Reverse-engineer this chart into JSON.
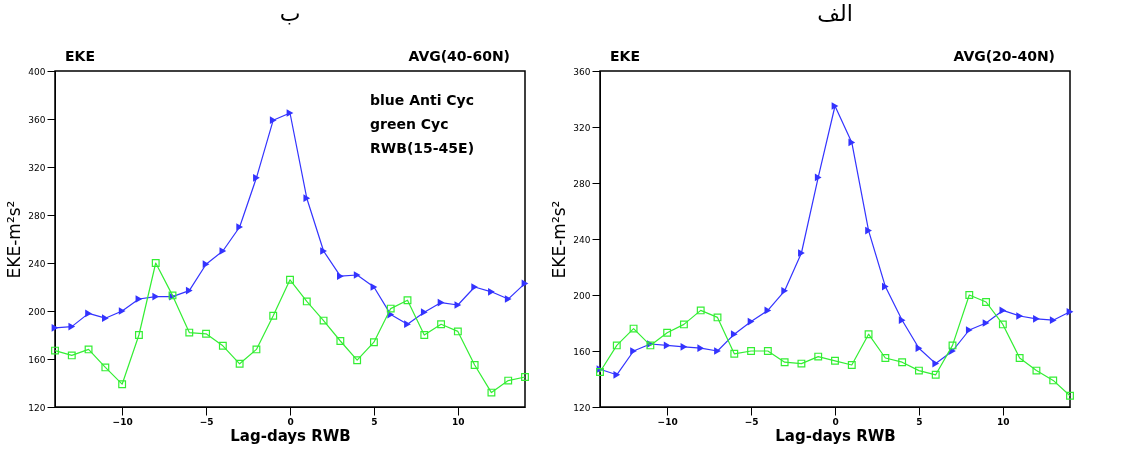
{
  "chart_data": [
    {
      "type": "line",
      "title": "ب",
      "xlabel": "Lag-days RWB",
      "ylabel": "EKE-m²s²",
      "annotations": [
        "EKE",
        "AVG(40-60N)",
        "blue  Anti Cyc",
        "green Cyc",
        "RWB(15-45E)"
      ],
      "x": [
        -14,
        -13,
        -12,
        -11,
        -10,
        -9,
        -8,
        -7,
        -6,
        -5,
        -4,
        -3,
        -2,
        -1,
        0,
        1,
        2,
        3,
        4,
        5,
        6,
        7,
        8,
        9,
        10,
        11,
        12,
        13,
        14
      ],
      "series": [
        {
          "color": "#3333ff",
          "marker": "triangle",
          "values": [
            186,
            187,
            198,
            194,
            200,
            210,
            212,
            212,
            217,
            239,
            250,
            270,
            311,
            359,
            365,
            294,
            250,
            229,
            230,
            220,
            197,
            189,
            199,
            207,
            205,
            220,
            216,
            210,
            223
          ]
        },
        {
          "color": "#33ee33",
          "marker": "square",
          "values": [
            167,
            163,
            168,
            153,
            139,
            180,
            240,
            213,
            182,
            181,
            171,
            156,
            168,
            196,
            226,
            208,
            192,
            175,
            159,
            174,
            202,
            209,
            180,
            189,
            183,
            155,
            132,
            142,
            145
          ]
        }
      ],
      "xlim": [
        -14,
        14
      ],
      "xticks": [
        -10,
        -5,
        0,
        5,
        10
      ],
      "ylim": [
        120,
        400
      ],
      "yticks": [
        120,
        160,
        200,
        240,
        280,
        320,
        360,
        400
      ],
      "grid": false
    },
    {
      "type": "line",
      "title": "الف",
      "xlabel": "Lag-days RWB",
      "ylabel": "EKE-m²s²",
      "annotations": [
        "EKE",
        "AVG(20-40N)"
      ],
      "x": [
        -14,
        -13,
        -12,
        -11,
        -10,
        -9,
        -8,
        -7,
        -6,
        -5,
        -4,
        -3,
        -2,
        -1,
        0,
        1,
        2,
        3,
        4,
        5,
        6,
        7,
        8,
        9,
        10,
        11,
        12,
        13,
        14
      ],
      "series": [
        {
          "color": "#3333ff",
          "marker": "triangle",
          "values": [
            147,
            143,
            160,
            165,
            164,
            163,
            162,
            160,
            172,
            181,
            189,
            203,
            230,
            284,
            335,
            309,
            246,
            206,
            182,
            162,
            151,
            160,
            175,
            180,
            189,
            185,
            183,
            182,
            188
          ]
        },
        {
          "color": "#33ee33",
          "marker": "square",
          "values": [
            145,
            164,
            176,
            164,
            173,
            179,
            189,
            184,
            158,
            160,
            160,
            152,
            151,
            156,
            153,
            150,
            172,
            155,
            152,
            146,
            143,
            164,
            200,
            195,
            179,
            155,
            146,
            139,
            128
          ]
        }
      ],
      "xlim": [
        -14,
        14
      ],
      "xticks": [
        -10,
        -5,
        0,
        5,
        10
      ],
      "ylim": [
        120,
        360
      ],
      "yticks": [
        120,
        160,
        200,
        240,
        280,
        320,
        360
      ],
      "grid": false
    }
  ]
}
